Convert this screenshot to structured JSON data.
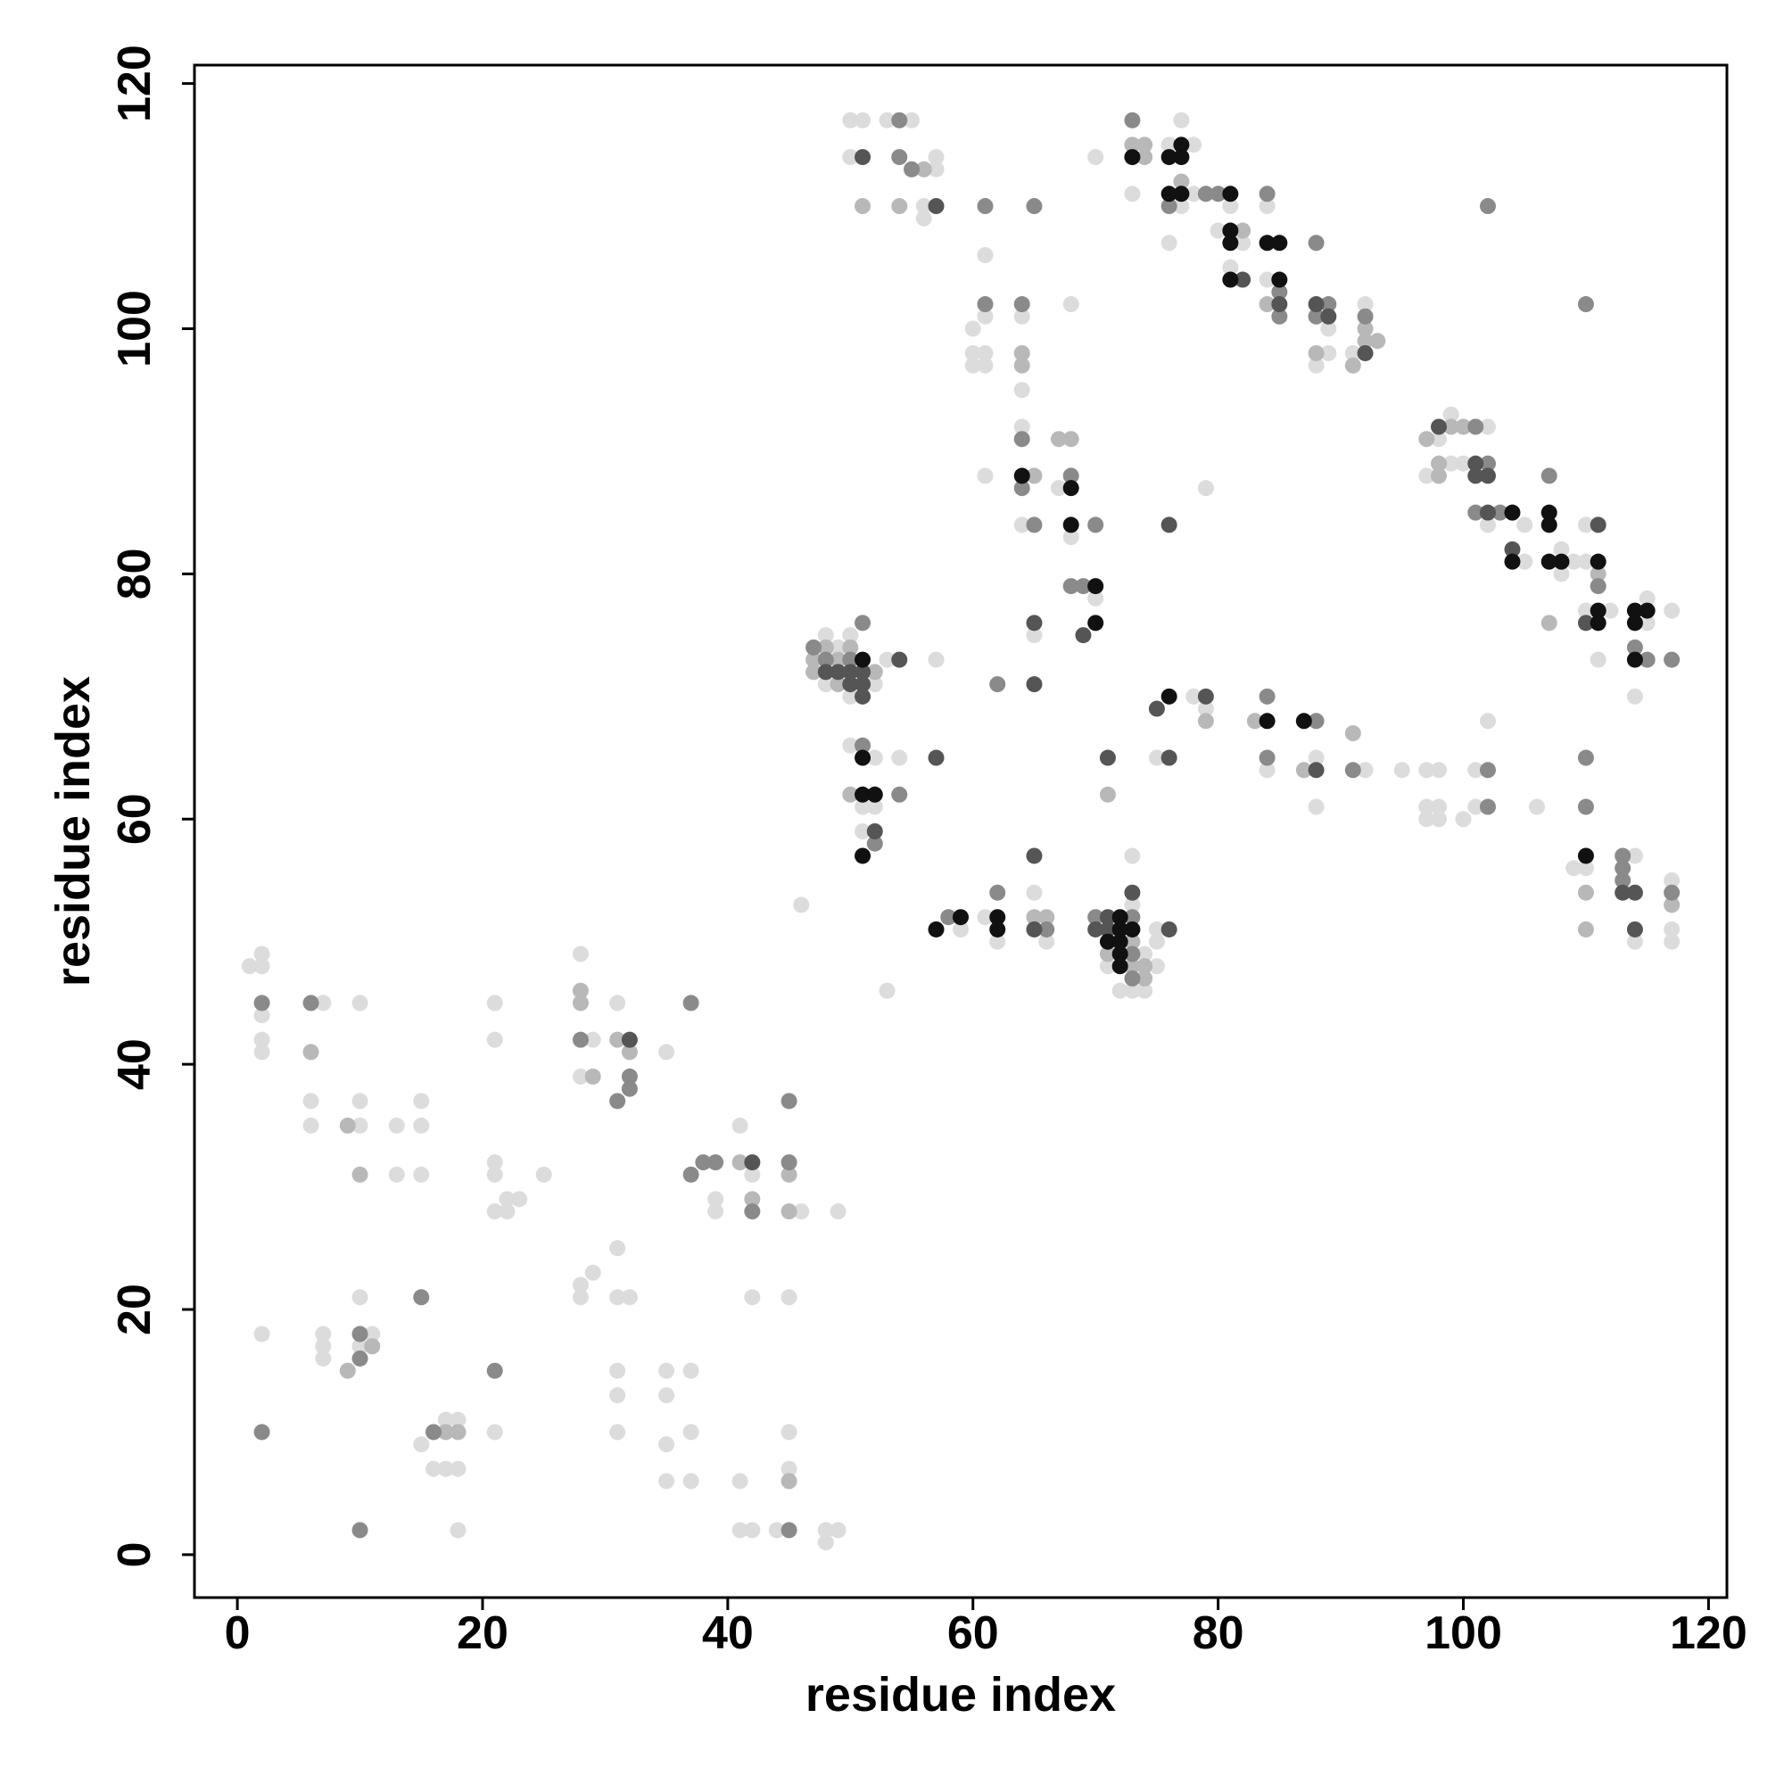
{
  "chart_data": {
    "type": "scatter",
    "x_label": "residue index",
    "y_label": "residue index",
    "xlim": [
      -3.5,
      121.5
    ],
    "ylim": [
      -3.5,
      121.5
    ],
    "xticks": [
      0,
      20,
      40,
      60,
      80,
      100,
      120
    ],
    "yticks": [
      0,
      20,
      40,
      60,
      80,
      100,
      120
    ],
    "grid": false,
    "series": [
      {
        "color": "#dcdcdc",
        "x": [
          1,
          2,
          2,
          2,
          2,
          2,
          2,
          7,
          6,
          6,
          10,
          10,
          10,
          13,
          15,
          15,
          13,
          15,
          10,
          7,
          7,
          7,
          10,
          11,
          15,
          17,
          18,
          16,
          17,
          18,
          18,
          21,
          21,
          21,
          21,
          21,
          22,
          22,
          23,
          25,
          21,
          28,
          29,
          28,
          31,
          35,
          28,
          29,
          28,
          31,
          31,
          32,
          31,
          31,
          31,
          35,
          37,
          35,
          37,
          35,
          35,
          37,
          39,
          39,
          41,
          42,
          46,
          49,
          42,
          45,
          45,
          45,
          41,
          41,
          42,
          44,
          48,
          48,
          49,
          46,
          53,
          48,
          48,
          49,
          50,
          50,
          52,
          53,
          57,
          50,
          52,
          54,
          51,
          52,
          51,
          50,
          51,
          53,
          55,
          50,
          57,
          57,
          56,
          56,
          61,
          61,
          64,
          68,
          60,
          60,
          61,
          60,
          61,
          64,
          64,
          61,
          67,
          64,
          68,
          70,
          65,
          79,
          70,
          76,
          77,
          78,
          73,
          77,
          78,
          81,
          80,
          82,
          76,
          81,
          84,
          84,
          89,
          89,
          88,
          91,
          92,
          98,
          99,
          102,
          97,
          99,
          100,
          102,
          105,
          105,
          108,
          109,
          108,
          110,
          110,
          110,
          112,
          111,
          115,
          115,
          114,
          117,
          78,
          79,
          75,
          84,
          88,
          88,
          92,
          95,
          97,
          98,
          97,
          98,
          97,
          98,
          100,
          101,
          102,
          101,
          106,
          110,
          109,
          114,
          114,
          117,
          117,
          117,
          59,
          61,
          62,
          65,
          66,
          71,
          72,
          73,
          73,
          74,
          74,
          75,
          75,
          75,
          73
        ],
        "values": [
          48,
          49,
          48,
          44,
          42,
          41,
          18,
          45,
          37,
          35,
          45,
          37,
          35,
          35,
          37,
          35,
          31,
          31,
          21,
          18,
          17,
          16,
          17,
          18,
          9,
          11,
          11,
          7,
          7,
          7,
          2,
          45,
          42,
          32,
          31,
          28,
          28,
          29,
          29,
          31,
          10,
          49,
          42,
          39,
          45,
          41,
          22,
          23,
          21,
          25,
          21,
          21,
          15,
          13,
          10,
          15,
          15,
          13,
          10,
          9,
          6,
          6,
          29,
          28,
          35,
          31,
          28,
          28,
          21,
          21,
          10,
          7,
          6,
          2,
          2,
          2,
          2,
          1,
          2,
          53,
          46,
          75,
          71,
          74,
          75,
          70,
          71,
          73,
          73,
          66,
          65,
          65,
          61,
          61,
          59,
          117,
          117,
          117,
          117,
          114,
          113,
          114,
          110,
          109,
          106,
          101,
          101,
          102,
          100,
          98,
          98,
          97,
          97,
          95,
          92,
          88,
          87,
          84,
          83,
          78,
          75,
          87,
          114,
          115,
          117,
          115,
          111,
          110,
          111,
          110,
          108,
          107,
          107,
          105,
          110,
          104,
          100,
          98,
          97,
          98,
          102,
          91,
          93,
          92,
          88,
          89,
          89,
          84,
          84,
          81,
          82,
          81,
          80,
          84,
          81,
          77,
          77,
          73,
          78,
          76,
          70,
          77,
          70,
          69,
          65,
          64,
          65,
          61,
          64,
          64,
          64,
          64,
          61,
          61,
          60,
          60,
          60,
          64,
          68,
          61,
          61,
          56,
          56,
          57,
          50,
          55,
          51,
          50,
          51,
          52,
          50,
          54,
          50,
          48,
          46,
          53,
          46,
          49,
          46,
          51,
          50,
          48,
          57
        ]
      },
      {
        "color": "#b8b8b8",
        "x": [
          6,
          9,
          10,
          9,
          11,
          17,
          18,
          28,
          28,
          29,
          31,
          32,
          41,
          42,
          45,
          45,
          45,
          47,
          47,
          48,
          49,
          49,
          50,
          52,
          50,
          56,
          51,
          54,
          64,
          64,
          67,
          68,
          65,
          73,
          74,
          74,
          77,
          82,
          84,
          88,
          91,
          92,
          92,
          93,
          97,
          99,
          100,
          98,
          98,
          107,
          111,
          79,
          83,
          91,
          71,
          87,
          110,
          110,
          117,
          65,
          66,
          71,
          73,
          73,
          74,
          74
        ],
        "values": [
          41,
          35,
          31,
          15,
          17,
          10,
          10,
          46,
          45,
          39,
          42,
          41,
          32,
          29,
          31,
          28,
          6,
          73,
          72,
          74,
          73,
          71,
          74,
          72,
          62,
          113,
          110,
          110,
          98,
          97,
          91,
          91,
          88,
          115,
          115,
          114,
          112,
          108,
          102,
          98,
          97,
          100,
          99,
          99,
          91,
          92,
          92,
          89,
          88,
          76,
          80,
          68,
          68,
          67,
          62,
          64,
          54,
          51,
          53,
          52,
          52,
          49,
          50,
          48,
          48,
          47
        ]
      },
      {
        "color": "#8a8a8a",
        "x": [
          2,
          2,
          6,
          15,
          10,
          10,
          16,
          10,
          21,
          28,
          32,
          32,
          31,
          37,
          37,
          38,
          39,
          42,
          45,
          45,
          45,
          47,
          48,
          50,
          51,
          51,
          54,
          52,
          54,
          54,
          55,
          61,
          65,
          61,
          64,
          64,
          64,
          68,
          65,
          70,
          68,
          69,
          62,
          73,
          76,
          79,
          80,
          84,
          85,
          85,
          88,
          89,
          88,
          92,
          102,
          110,
          101,
          102,
          101,
          103,
          107,
          111,
          114,
          115,
          117,
          84,
          88,
          91,
          84,
          102,
          102,
          110,
          110,
          113,
          113,
          113,
          117,
          58,
          62,
          66,
          70,
          73,
          73,
          73
        ],
        "values": [
          45,
          10,
          45,
          21,
          18,
          16,
          10,
          2,
          15,
          42,
          39,
          38,
          37,
          45,
          31,
          32,
          32,
          28,
          37,
          32,
          2,
          74,
          73,
          73,
          76,
          66,
          62,
          58,
          117,
          114,
          113,
          110,
          110,
          102,
          102,
          91,
          87,
          88,
          84,
          84,
          79,
          79,
          71,
          117,
          110,
          111,
          111,
          111,
          103,
          101,
          107,
          102,
          101,
          101,
          110,
          102,
          92,
          89,
          85,
          85,
          88,
          79,
          74,
          73,
          73,
          70,
          68,
          64,
          65,
          64,
          61,
          65,
          61,
          57,
          56,
          55,
          54,
          52,
          54,
          51,
          52,
          52,
          49,
          47
        ]
      },
      {
        "color": "#555555",
        "x": [
          32,
          42,
          48,
          49,
          50,
          50,
          51,
          51,
          51,
          54,
          52,
          57,
          51,
          57,
          82,
          85,
          88,
          89,
          92,
          65,
          69,
          65,
          76,
          98,
          101,
          101,
          102,
          102,
          104,
          111,
          110,
          75,
          79,
          76,
          71,
          88,
          113,
          114,
          114,
          65,
          65,
          70,
          71,
          71,
          73,
          76
        ],
        "values": [
          42,
          32,
          72,
          72,
          72,
          71,
          72,
          71,
          70,
          73,
          59,
          65,
          114,
          110,
          104,
          102,
          102,
          101,
          98,
          76,
          75,
          71,
          84,
          92,
          89,
          88,
          88,
          85,
          82,
          84,
          76,
          69,
          70,
          65,
          65,
          64,
          54,
          54,
          51,
          57,
          51,
          51,
          52,
          51,
          54,
          51
        ]
      },
      {
        "color": "#111111",
        "x": [
          51,
          51,
          51,
          52,
          51,
          64,
          68,
          68,
          70,
          70,
          73,
          77,
          76,
          77,
          76,
          77,
          81,
          81,
          81,
          81,
          84,
          85,
          85,
          104,
          104,
          107,
          107,
          107,
          108,
          111,
          111,
          111,
          114,
          115,
          114,
          114,
          110,
          76,
          84,
          87,
          57,
          59,
          62,
          62,
          71,
          72,
          72,
          72,
          72,
          72,
          73
        ],
        "values": [
          73,
          65,
          62,
          62,
          57,
          88,
          87,
          84,
          79,
          76,
          114,
          115,
          114,
          114,
          111,
          111,
          111,
          108,
          107,
          104,
          107,
          107,
          104,
          85,
          81,
          85,
          84,
          81,
          81,
          81,
          77,
          76,
          77,
          77,
          76,
          73,
          57,
          70,
          68,
          68,
          51,
          52,
          52,
          51,
          50,
          52,
          51,
          50,
          49,
          48,
          51
        ]
      }
    ]
  }
}
